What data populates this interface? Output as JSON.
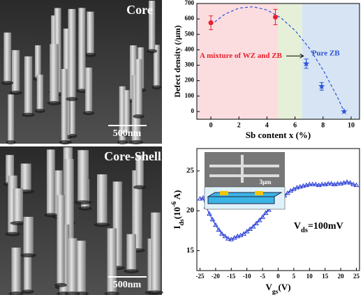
{
  "images": [
    {
      "label": "Core",
      "scale": "500nm"
    },
    {
      "label": "Core-Shell",
      "scale": "500nm"
    }
  ],
  "chart_data": [
    {
      "type": "scatter",
      "xlabel": "Sb content x (%)",
      "ylabel": "Defect density (/μm)",
      "x": [
        0,
        4.6,
        6.8,
        7.9,
        9.5
      ],
      "values": [
        575,
        612,
        310,
        163,
        0
      ],
      "errors": [
        45,
        50,
        30,
        25,
        null
      ],
      "colors": [
        "#e8202a",
        "#e8202a",
        "#2a52d8",
        "#2a52d8",
        "#2a52d8"
      ],
      "markers": [
        "circle",
        "circle",
        "star",
        "star",
        "star"
      ],
      "fit_curve": {
        "x": [
          0,
          1,
          2,
          3,
          4,
          5,
          6,
          7,
          8,
          9,
          9.5
        ],
        "values": [
          561,
          631,
          670,
          679,
          658,
          607,
          525,
          413,
          270,
          98,
          0
        ],
        "color": "#2a52d8"
      },
      "regions": [
        {
          "from": -1,
          "to": 4.8,
          "color": "#fbdde0"
        },
        {
          "from": 4.8,
          "to": 6.5,
          "color": "#e6f0d8"
        },
        {
          "from": 6.5,
          "to": 10.6,
          "color": "#d6e4f4"
        }
      ],
      "annotations": [
        {
          "text": "A mixture of WZ and ZB",
          "color": "#e8202a"
        },
        {
          "text": "Pure ZB",
          "color": "#2a52d8"
        }
      ],
      "xlim": [
        -1,
        10.6
      ],
      "xticks": [
        0,
        2,
        4,
        6,
        8,
        10
      ],
      "ylim": [
        -50,
        700
      ],
      "yticks": [
        0,
        100,
        200,
        300,
        400,
        500,
        600,
        700
      ]
    },
    {
      "type": "line",
      "xlabel": [
        "V",
        "gs",
        "(V)"
      ],
      "ylabel": [
        "I",
        "ds",
        "(10",
        "-6",
        " A)"
      ],
      "color": "#2a3fd6",
      "annotation": [
        "V",
        "ds",
        "=100mV"
      ],
      "inset_label": "3μm",
      "x": [
        -25,
        -24,
        -23,
        -22,
        -21,
        -20,
        -19,
        -18,
        -17,
        -16,
        -15,
        -14,
        -13,
        -12,
        -11,
        -10,
        -9,
        -8,
        -7,
        -6,
        -5,
        -4,
        -3,
        -2,
        -1,
        0,
        1,
        2,
        3,
        4,
        5,
        6,
        7,
        8,
        9,
        10,
        11,
        12,
        13,
        14,
        15,
        16,
        17,
        18,
        19,
        20,
        21,
        22,
        23,
        24,
        25
      ],
      "values": [
        21.5,
        21.6,
        20.5,
        19.6,
        18.9,
        18.2,
        17.6,
        17.1,
        16.8,
        16.5,
        16.4,
        16.6,
        16.8,
        16.9,
        17.1,
        17.4,
        17.7,
        18.0,
        18.4,
        18.8,
        19.2,
        19.7,
        20.1,
        20.5,
        20.9,
        21.3,
        21.6,
        21.9,
        22.2,
        22.5,
        22.7,
        22.9,
        23.0,
        23.1,
        23.2,
        23.3,
        23.3,
        23.3,
        23.2,
        23.3,
        23.3,
        23.4,
        23.4,
        23.3,
        23.4,
        23.4,
        23.5,
        23.6,
        23.5,
        23.3,
        23.2
      ],
      "xlim": [
        -26,
        26
      ],
      "xticks": [
        -25,
        -20,
        -15,
        -10,
        -5,
        0,
        5,
        10,
        15,
        20,
        25
      ],
      "ylim": [
        12.5,
        27.8
      ],
      "yticks": [
        15,
        20,
        25
      ]
    }
  ]
}
